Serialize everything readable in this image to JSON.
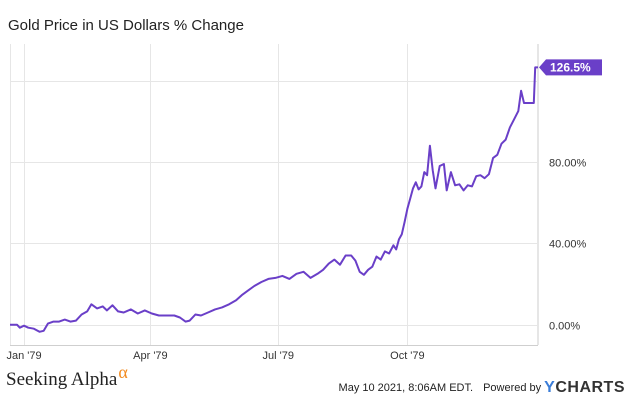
{
  "chart_data": {
    "type": "line",
    "title": "Gold Price in US Dollars % Change",
    "xlim": [
      "1978-12-22",
      "1980-01-02"
    ],
    "ylim": [
      -10,
      138
    ],
    "y_ticks": [
      {
        "value": 0,
        "label": "0.00%"
      },
      {
        "value": 40,
        "label": "40.00%"
      },
      {
        "value": 80,
        "label": "80.00%"
      },
      {
        "value": 120,
        "label": ""
      }
    ],
    "x_ticks": [
      {
        "date": "1979-01-01",
        "label": "Jan '79"
      },
      {
        "date": "1979-04-01",
        "label": "Apr '79"
      },
      {
        "date": "1979-07-01",
        "label": "Jul '79"
      },
      {
        "date": "1979-10-01",
        "label": "Oct '79"
      }
    ],
    "x_grid_dates": [
      "1979-01-01",
      "1979-04-01",
      "1979-07-01",
      "1979-10-01",
      "1980-01-01"
    ],
    "grid": true,
    "series": [
      {
        "color": "#6a3fc8",
        "end_label": "126.5%",
        "points": [
          [
            "1978-12-22",
            0.0
          ],
          [
            "1978-12-27",
            0.0
          ],
          [
            "1978-12-29",
            -1.5
          ],
          [
            "1979-01-01",
            -0.5
          ],
          [
            "1979-01-04",
            -1.5
          ],
          [
            "1979-01-08",
            -2.0
          ],
          [
            "1979-01-12",
            -3.5
          ],
          [
            "1979-01-15",
            -3.0
          ],
          [
            "1979-01-18",
            0.5
          ],
          [
            "1979-01-22",
            1.5
          ],
          [
            "1979-01-26",
            1.5
          ],
          [
            "1979-01-30",
            2.5
          ],
          [
            "1979-02-03",
            1.5
          ],
          [
            "1979-02-07",
            2.0
          ],
          [
            "1979-02-11",
            5.0
          ],
          [
            "1979-02-15",
            6.5
          ],
          [
            "1979-02-18",
            10.0
          ],
          [
            "1979-02-22",
            8.0
          ],
          [
            "1979-02-26",
            9.0
          ],
          [
            "1979-03-01",
            7.0
          ],
          [
            "1979-03-05",
            9.5
          ],
          [
            "1979-03-09",
            6.5
          ],
          [
            "1979-03-13",
            6.0
          ],
          [
            "1979-03-18",
            7.5
          ],
          [
            "1979-03-23",
            5.5
          ],
          [
            "1979-03-28",
            7.0
          ],
          [
            "1979-04-02",
            5.5
          ],
          [
            "1979-04-07",
            4.5
          ],
          [
            "1979-04-13",
            4.5
          ],
          [
            "1979-04-18",
            4.5
          ],
          [
            "1979-04-22",
            3.5
          ],
          [
            "1979-04-26",
            1.5
          ],
          [
            "1979-04-29",
            2.0
          ],
          [
            "1979-05-03",
            5.0
          ],
          [
            "1979-05-07",
            4.5
          ],
          [
            "1979-05-12",
            6.0
          ],
          [
            "1979-05-17",
            7.5
          ],
          [
            "1979-05-22",
            8.5
          ],
          [
            "1979-05-27",
            10.0
          ],
          [
            "1979-06-01",
            12.0
          ],
          [
            "1979-06-05",
            14.5
          ],
          [
            "1979-06-09",
            16.5
          ],
          [
            "1979-06-14",
            19.0
          ],
          [
            "1979-06-19",
            21.0
          ],
          [
            "1979-06-24",
            22.5
          ],
          [
            "1979-06-29",
            23.0
          ],
          [
            "1979-07-04",
            24.0
          ],
          [
            "1979-07-09",
            22.5
          ],
          [
            "1979-07-14",
            25.0
          ],
          [
            "1979-07-19",
            26.0
          ],
          [
            "1979-07-24",
            23.0
          ],
          [
            "1979-07-29",
            25.0
          ],
          [
            "1979-08-02",
            27.0
          ],
          [
            "1979-08-06",
            30.0
          ],
          [
            "1979-08-10",
            32.0
          ],
          [
            "1979-08-14",
            29.5
          ],
          [
            "1979-08-18",
            34.0
          ],
          [
            "1979-08-22",
            34.0
          ],
          [
            "1979-08-25",
            31.5
          ],
          [
            "1979-08-28",
            26.0
          ],
          [
            "1979-08-31",
            24.5
          ],
          [
            "1979-09-03",
            27.0
          ],
          [
            "1979-09-06",
            28.5
          ],
          [
            "1979-09-09",
            33.5
          ],
          [
            "1979-09-12",
            32.0
          ],
          [
            "1979-09-15",
            36.0
          ],
          [
            "1979-09-18",
            35.0
          ],
          [
            "1979-09-21",
            39.0
          ],
          [
            "1979-09-23",
            37.0
          ],
          [
            "1979-09-25",
            42.0
          ],
          [
            "1979-09-27",
            44.5
          ],
          [
            "1979-09-29",
            50.5
          ],
          [
            "1979-10-01",
            57.0
          ],
          [
            "1979-10-03",
            62.0
          ],
          [
            "1979-10-05",
            67.0
          ],
          [
            "1979-10-07",
            70.0
          ],
          [
            "1979-10-09",
            66.5
          ],
          [
            "1979-10-11",
            68.0
          ],
          [
            "1979-10-13",
            75.0
          ],
          [
            "1979-10-15",
            73.5
          ],
          [
            "1979-10-17",
            88.0
          ],
          [
            "1979-10-19",
            76.0
          ],
          [
            "1979-10-21",
            67.0
          ],
          [
            "1979-10-24",
            78.0
          ],
          [
            "1979-10-27",
            79.0
          ],
          [
            "1979-10-29",
            66.0
          ],
          [
            "1979-11-01",
            75.0
          ],
          [
            "1979-11-04",
            68.5
          ],
          [
            "1979-11-07",
            69.0
          ],
          [
            "1979-11-10",
            66.0
          ],
          [
            "1979-11-13",
            68.5
          ],
          [
            "1979-11-16",
            68.0
          ],
          [
            "1979-11-19",
            73.0
          ],
          [
            "1979-11-22",
            73.5
          ],
          [
            "1979-11-25",
            72.0
          ],
          [
            "1979-11-28",
            74.0
          ],
          [
            "1979-12-01",
            82.0
          ],
          [
            "1979-12-04",
            83.5
          ],
          [
            "1979-12-07",
            89.0
          ],
          [
            "1979-12-10",
            91.0
          ],
          [
            "1979-12-13",
            97.0
          ],
          [
            "1979-12-16",
            101.0
          ],
          [
            "1979-12-19",
            105.0
          ],
          [
            "1979-12-21",
            115.0
          ],
          [
            "1979-12-23",
            109.0
          ],
          [
            "1979-12-27",
            109.0
          ],
          [
            "1979-12-30",
            109.0
          ],
          [
            "1979-12-31",
            126.5
          ],
          [
            "1980-01-02",
            126.5
          ]
        ]
      }
    ]
  },
  "footer": {
    "brand_name": "Seeking Alpha",
    "brand_symbol": "α",
    "timestamp": "May 10 2021, 8:06AM EDT.",
    "powered_by": "Powered by",
    "ycharts_y": "Y",
    "ycharts_rest": "CHARTS",
    "ycharts_color": "#3b7dd8",
    "brand_symbol_color": "#f28a1e"
  }
}
